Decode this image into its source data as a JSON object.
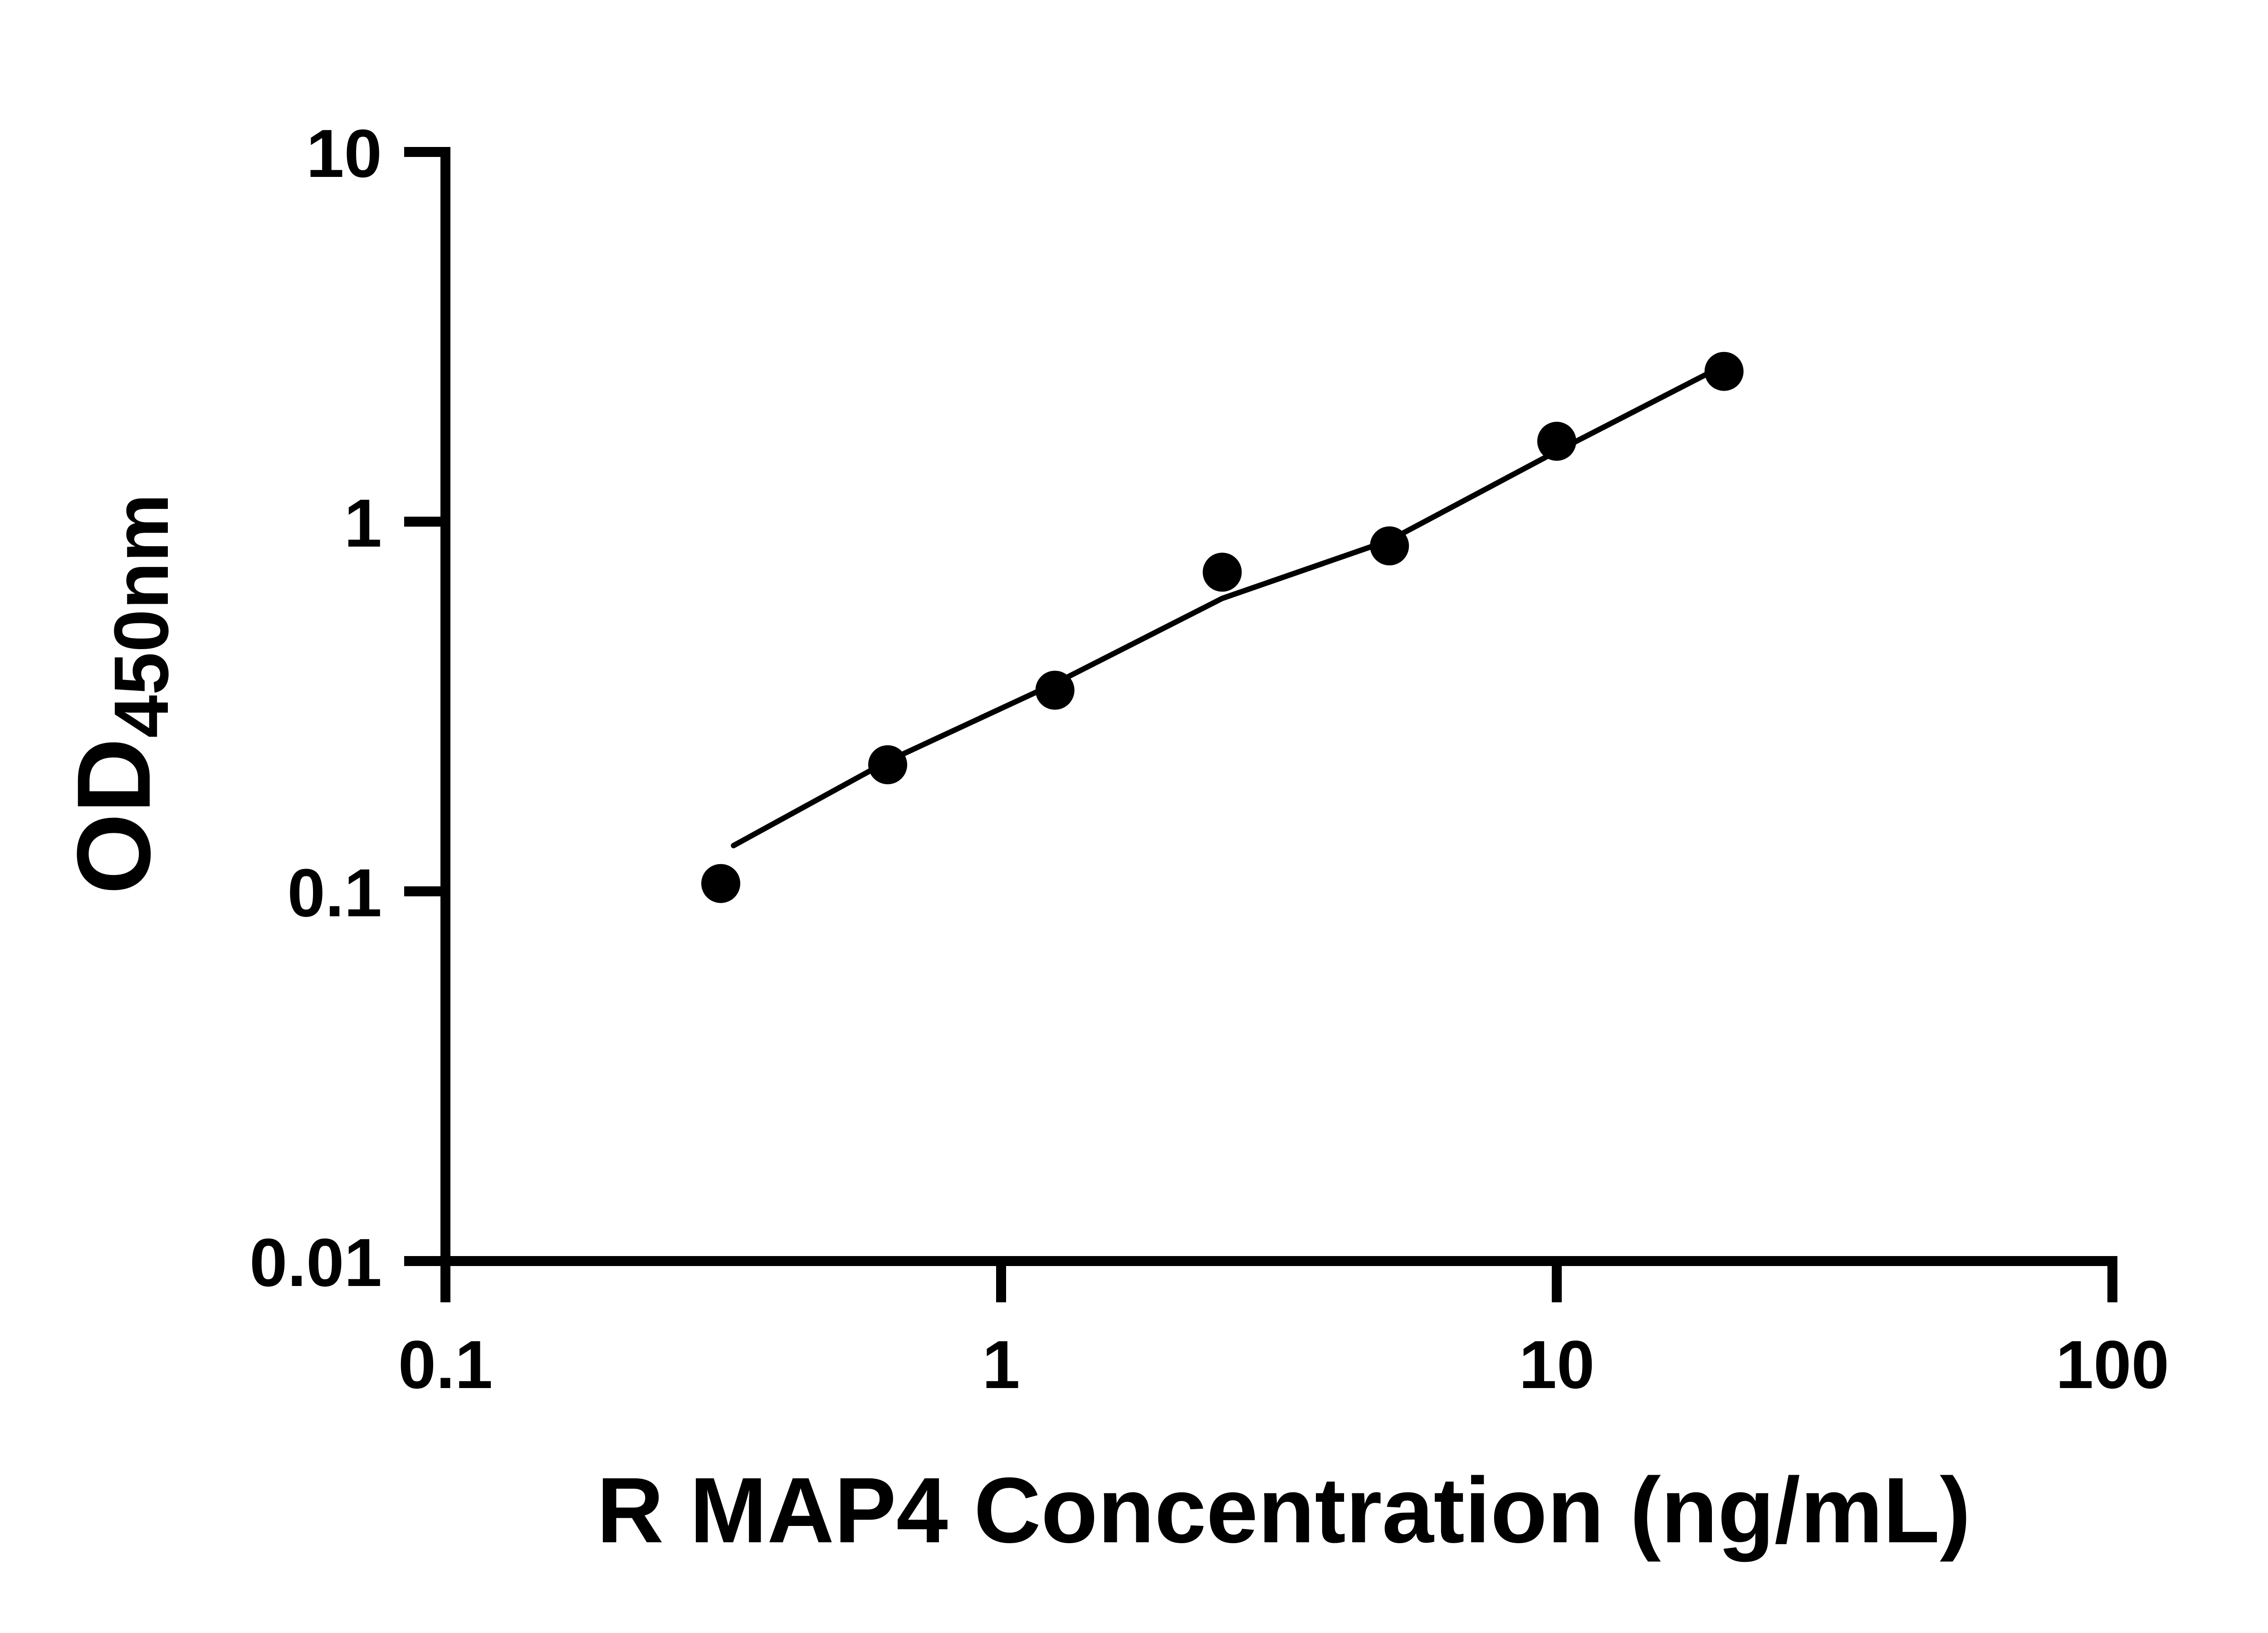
{
  "colors": {
    "foreground": "#000000",
    "background": "#ffffff"
  },
  "chart_data": {
    "type": "scatter",
    "title": "",
    "xlabel": "R MAP4 Concentration (ng/mL)",
    "ylabel": "OD",
    "ylabel_subscript": "450nm",
    "x_scale": "log",
    "y_scale": "log",
    "xlim": [
      0.1,
      100
    ],
    "ylim": [
      0.01,
      10
    ],
    "x_ticks": [
      0.1,
      1,
      10,
      100
    ],
    "x_tick_labels": [
      "0.1",
      "1",
      "10",
      "100"
    ],
    "y_ticks": [
      0.01,
      0.1,
      1,
      10
    ],
    "y_tick_labels": [
      "0.01",
      "0.1",
      "1",
      "10"
    ],
    "grid": false,
    "legend": "none",
    "marker": {
      "shape": "circle",
      "color": "#000000"
    },
    "points": [
      {
        "x": 0.313,
        "y": 0.105
      },
      {
        "x": 0.625,
        "y": 0.22
      },
      {
        "x": 1.25,
        "y": 0.35
      },
      {
        "x": 2.5,
        "y": 0.73
      },
      {
        "x": 5,
        "y": 0.86
      },
      {
        "x": 10,
        "y": 1.65
      },
      {
        "x": 20,
        "y": 2.55
      }
    ],
    "fit_line": {
      "color": "#000000",
      "points": [
        [
          0.33,
          0.133
        ],
        [
          0.625,
          0.225
        ],
        [
          1.25,
          0.365
        ],
        [
          2.5,
          0.62
        ],
        [
          5,
          0.89
        ],
        [
          10,
          1.55
        ],
        [
          20.5,
          2.7
        ]
      ]
    }
  }
}
